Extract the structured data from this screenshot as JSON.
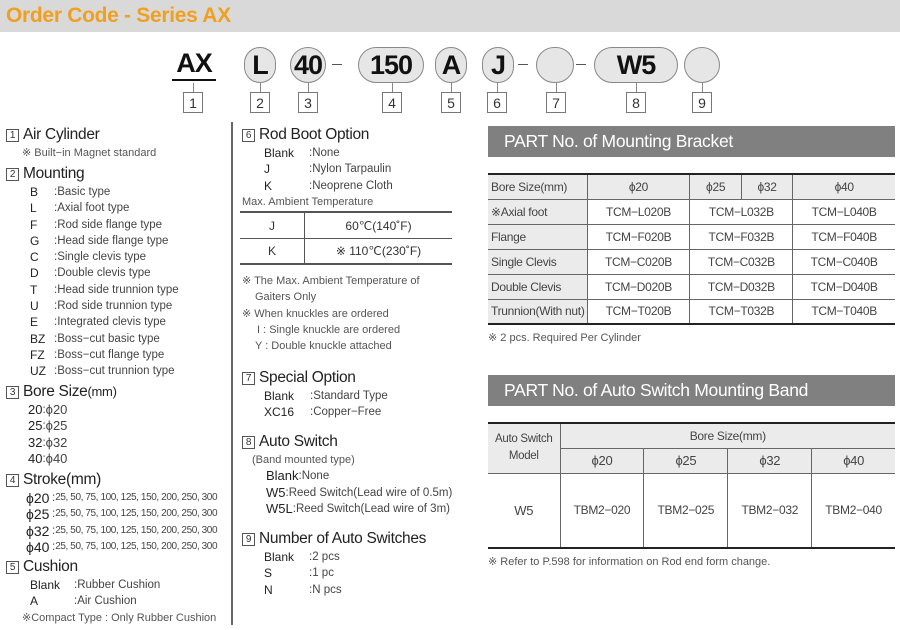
{
  "header": {
    "title": "Order Code - Series AX"
  },
  "order_code": {
    "tokens": [
      {
        "text": "AX",
        "num": "1"
      },
      {
        "text": "L",
        "num": "2"
      },
      {
        "text": "40",
        "num": "3"
      },
      {
        "text": "150",
        "num": "4"
      },
      {
        "text": "A",
        "num": "5"
      },
      {
        "text": "J",
        "num": "6"
      },
      {
        "text": "",
        "num": "7"
      },
      {
        "text": "W5",
        "num": "8"
      },
      {
        "text": "",
        "num": "9"
      }
    ]
  },
  "sections": [
    {
      "num": "1",
      "title": "Air Cylinder",
      "items": [],
      "notes": [
        "※ Built−in Magnet standard"
      ]
    },
    {
      "num": "2",
      "title": "Mounting",
      "items": [
        [
          "B",
          "Basic type"
        ],
        [
          "L",
          "Axial foot type"
        ],
        [
          "F",
          "Rod side flange type"
        ],
        [
          "G",
          "Head side flange type"
        ],
        [
          "C",
          "Single clevis type"
        ],
        [
          "D",
          "Double clevis type"
        ],
        [
          "T",
          "Head side trunnion type"
        ],
        [
          "U",
          "Rod side trunnion type"
        ],
        [
          "E",
          "Integrated clevis type"
        ],
        [
          "BZ",
          "Boss−cut basic type"
        ],
        [
          "FZ",
          "Boss−cut flange type"
        ],
        [
          "UZ",
          "Boss−cut trunnion type"
        ]
      ]
    },
    {
      "num": "3",
      "title": "Bore Size",
      "unit": "(mm)",
      "items": [
        [
          "20",
          "ϕ20"
        ],
        [
          "25",
          "ϕ25"
        ],
        [
          "32",
          "ϕ32"
        ],
        [
          "40",
          "ϕ40"
        ]
      ]
    },
    {
      "num": "4",
      "title": "Stroke(mm)",
      "items": [
        [
          "ϕ20",
          "25, 50, 75, 100, 125, 150, 200, 250, 300"
        ],
        [
          "ϕ25",
          "25, 50, 75, 100, 125, 150, 200, 250, 300"
        ],
        [
          "ϕ32",
          "25, 50, 75, 100, 125, 150, 200, 250, 300"
        ],
        [
          "ϕ40",
          "25, 50, 75, 100, 125, 150, 200, 250, 300"
        ]
      ]
    },
    {
      "num": "5",
      "title": "Cushion",
      "items": [
        [
          "Blank",
          "Rubber Cushion"
        ],
        [
          "A",
          "Air Cushion"
        ]
      ],
      "notes": [
        "※Compact Type : Only Rubber Cushion"
      ]
    },
    {
      "num": "6",
      "title": "Rod Boot Option",
      "items": [
        [
          "Blank",
          "None"
        ],
        [
          "J",
          "Nylon Tarpaulin"
        ],
        [
          "K",
          "Neoprene Cloth"
        ]
      ],
      "notes": [
        "Max. Ambient Temperature"
      ]
    },
    {
      "num": "7",
      "title": "Special Option",
      "items": [
        [
          "Blank",
          "Standard Type"
        ],
        [
          "XC16",
          "Copper−Free"
        ]
      ]
    },
    {
      "num": "8",
      "title": "Auto Switch",
      "notes": [
        "(Band mounted type)"
      ],
      "items": [
        [
          "Blank",
          "None"
        ],
        [
          "W5",
          "Reed Switch(Lead wire of 0.5m)"
        ],
        [
          "W5L",
          "Reed Switch(Lead wire of 3m)"
        ]
      ]
    },
    {
      "num": "9",
      "title": "Number of Auto Switches",
      "items": [
        [
          "Blank",
          "2 pcs"
        ],
        [
          "S",
          "1 pc"
        ],
        [
          "N",
          "N pcs"
        ]
      ]
    }
  ],
  "temp_table": [
    [
      "J",
      "60℃(140˚F)"
    ],
    [
      "K",
      "※ 110℃(230˚F)"
    ]
  ],
  "rod_boot_notes": [
    "※ The Max. Ambient Temperature of",
    "Gaiters Only",
    "※ When knuckles are ordered",
    "I : Single knuckle are ordered",
    "Y : Double knuckle attached"
  ],
  "bracket": {
    "title": "PART No. of Mounting Bracket",
    "header": [
      "Bore Size(mm)",
      "ϕ20",
      "ϕ25",
      "ϕ32",
      "ϕ40"
    ],
    "rows": [
      [
        "※Axial foot",
        "TCM−L020B",
        "TCM−L032B",
        "TCM−L040B"
      ],
      [
        "Flange",
        "TCM−F020B",
        "TCM−F032B",
        "TCM−F040B"
      ],
      [
        "Single Clevis",
        "TCM−C020B",
        "TCM−C032B",
        "TCM−C040B"
      ],
      [
        "Double Clevis",
        "TCM−D020B",
        "TCM−D032B",
        "TCM−D040B"
      ],
      [
        "Trunnion(With nut)",
        "TCM−T020B",
        "TCM−T032B",
        "TCM−T040B"
      ]
    ],
    "note": "※ 2 pcs. Required Per Cylinder"
  },
  "band": {
    "title": "PART No. of Auto Switch Mounting Band",
    "model_header": "Auto Switch Model",
    "bore_header": "Bore Size(mm)",
    "bores": [
      "ϕ20",
      "ϕ25",
      "ϕ32",
      "ϕ40"
    ],
    "rows": [
      [
        "W5",
        "TBM2−020",
        "TBM2−025",
        "TBM2−032",
        "TBM2−040"
      ]
    ],
    "note": "※ Refer to P.598 for information on Rod end form change."
  },
  "colors": {
    "title": "#f0a020",
    "bar": "#808080"
  }
}
